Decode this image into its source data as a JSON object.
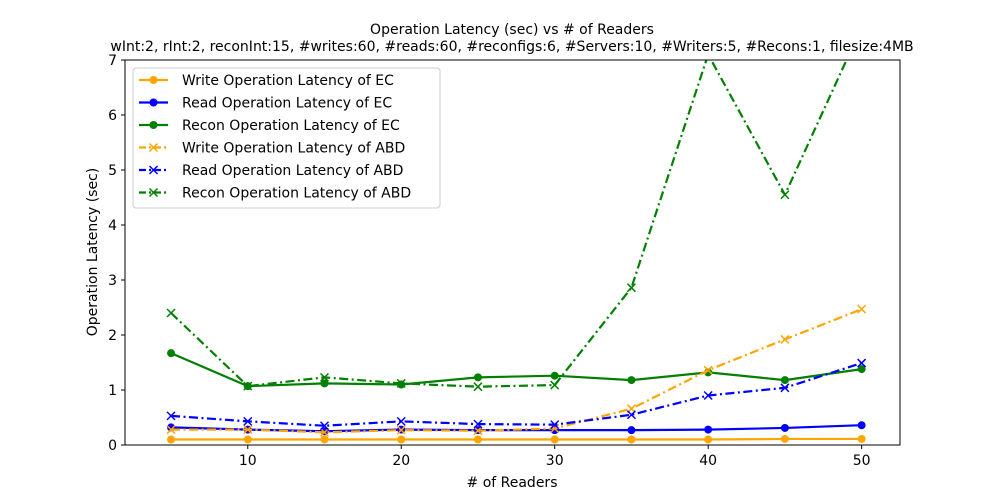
{
  "chart_data": {
    "type": "line",
    "title": "Operation Latency (sec) vs # of Readers",
    "subtitle": "wInt:2, rInt:2, reconInt:15, #writes:60, #reads:60, #reconfigs:6, #Servers:10, #Writers:5, #Recons:1, filesize:4MB",
    "xlabel": "# of Readers",
    "ylabel": "Operation Latency (sec)",
    "xlim": [
      2,
      52.5
    ],
    "ylim": [
      0,
      7
    ],
    "x_ticks": [
      10,
      20,
      30,
      40,
      50
    ],
    "y_ticks": [
      0,
      1,
      2,
      3,
      4,
      5,
      6,
      7
    ],
    "grid": false,
    "legend_position": "top-left",
    "x": [
      5,
      10,
      15,
      20,
      25,
      30,
      35,
      40,
      45,
      50
    ],
    "series": [
      {
        "name": "Write Operation Latency of EC",
        "color": "#ffa500",
        "marker": "circle",
        "dash": "solid",
        "values": [
          0.1,
          0.1,
          0.1,
          0.1,
          0.1,
          0.1,
          0.1,
          0.1,
          0.11,
          0.11
        ]
      },
      {
        "name": "Read Operation Latency of EC",
        "color": "#0000ff",
        "marker": "circle",
        "dash": "solid",
        "values": [
          0.32,
          0.28,
          0.25,
          0.28,
          0.27,
          0.27,
          0.27,
          0.28,
          0.31,
          0.36
        ]
      },
      {
        "name": "Recon Operation Latency of EC",
        "color": "#008000",
        "marker": "circle",
        "dash": "solid",
        "values": [
          1.67,
          1.07,
          1.12,
          1.1,
          1.23,
          1.26,
          1.18,
          1.32,
          1.18,
          1.38
        ]
      },
      {
        "name": "Write Operation Latency of ABD",
        "color": "#ffa500",
        "marker": "x",
        "dash": "dashdot",
        "values": [
          0.28,
          0.28,
          0.23,
          0.27,
          0.26,
          0.3,
          0.66,
          1.36,
          1.92,
          2.47
        ]
      },
      {
        "name": "Read Operation Latency of ABD",
        "color": "#0000ff",
        "marker": "x",
        "dash": "dashdot",
        "values": [
          0.53,
          0.43,
          0.35,
          0.43,
          0.38,
          0.37,
          0.55,
          0.9,
          1.04,
          1.49
        ]
      },
      {
        "name": "Recon Operation Latency of ABD",
        "color": "#008000",
        "marker": "x",
        "dash": "dashdot",
        "values": [
          2.4,
          1.07,
          1.23,
          1.12,
          1.06,
          1.09,
          2.86,
          7.1,
          4.55,
          7.6
        ]
      }
    ]
  }
}
